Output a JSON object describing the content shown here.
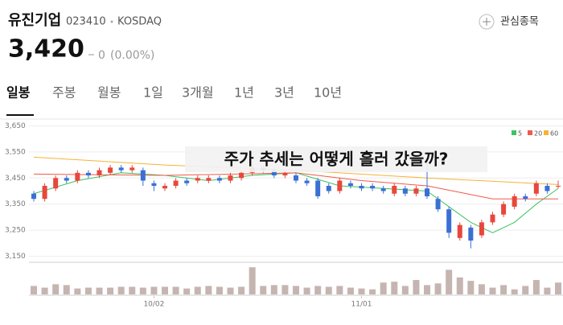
{
  "header": {
    "name": "유진기업",
    "code": "023410",
    "market": "KOSDAQ",
    "watch": "관심종목",
    "price": "3,420",
    "change": "0",
    "change_pct": "(0.00%)"
  },
  "tabs": [
    "일봉",
    "주봉",
    "월봉",
    "1일",
    "3개월",
    "1년",
    "3년",
    "10년"
  ],
  "chart_data": {
    "type": "candlestick",
    "title": "주가 추세는 어떻게 흘러 갔을까?",
    "categories": [
      null,
      null,
      null,
      null,
      null,
      null,
      null,
      null,
      null,
      null,
      null,
      "10/02",
      null,
      null,
      null,
      null,
      null,
      null,
      null,
      null,
      null,
      null,
      null,
      null,
      null,
      null,
      null,
      null,
      null,
      null,
      "11/01",
      null,
      null,
      null,
      null,
      null,
      null,
      null,
      null,
      null,
      null,
      null,
      null,
      null,
      null,
      null,
      null,
      null,
      null
    ],
    "open": [
      3390,
      3370,
      3410,
      3450,
      3440,
      3470,
      3460,
      3470,
      3490,
      3480,
      3480,
      3430,
      3410,
      3420,
      3440,
      3440,
      3440,
      3450,
      3440,
      3450,
      3470,
      3490,
      3480,
      3460,
      3460,
      3440,
      3440,
      3420,
      3400,
      3430,
      3420,
      3420,
      3410,
      3390,
      3410,
      3390,
      3410,
      3370,
      3330,
      3220,
      3260,
      3230,
      3280,
      3310,
      3340,
      3380,
      3390,
      3420,
      3420
    ],
    "high": [
      3400,
      3430,
      3460,
      3460,
      3480,
      3480,
      3490,
      3500,
      3500,
      3500,
      3490,
      3440,
      3430,
      3450,
      3450,
      3460,
      3460,
      3460,
      3470,
      3480,
      3500,
      3500,
      3490,
      3480,
      3470,
      3450,
      3450,
      3430,
      3450,
      3440,
      3430,
      3430,
      3420,
      3430,
      3420,
      3420,
      3530,
      3380,
      3340,
      3280,
      3270,
      3290,
      3320,
      3360,
      3390,
      3390,
      3440,
      3430,
      3440
    ],
    "low": [
      3360,
      3360,
      3400,
      3430,
      3430,
      3450,
      3450,
      3460,
      3470,
      3470,
      3420,
      3400,
      3400,
      3410,
      3420,
      3430,
      3430,
      3430,
      3430,
      3440,
      3460,
      3470,
      3450,
      3450,
      3430,
      3420,
      3370,
      3390,
      3390,
      3410,
      3400,
      3400,
      3390,
      3380,
      3380,
      3380,
      3370,
      3320,
      3220,
      3210,
      3180,
      3220,
      3270,
      3300,
      3330,
      3360,
      3380,
      3390,
      3410
    ],
    "close": [
      3370,
      3420,
      3450,
      3440,
      3470,
      3460,
      3480,
      3490,
      3480,
      3490,
      3440,
      3420,
      3420,
      3440,
      3430,
      3450,
      3450,
      3440,
      3460,
      3470,
      3490,
      3480,
      3460,
      3470,
      3440,
      3430,
      3380,
      3400,
      3440,
      3420,
      3410,
      3410,
      3400,
      3420,
      3390,
      3410,
      3380,
      3330,
      3240,
      3270,
      3210,
      3280,
      3310,
      3350,
      3380,
      3370,
      3430,
      3400,
      3420
    ],
    "volume": [
      10,
      8,
      12,
      11,
      7,
      8,
      8,
      8,
      9,
      9,
      8,
      9,
      9,
      9,
      7,
      9,
      10,
      9,
      8,
      9,
      32,
      10,
      11,
      11,
      10,
      8,
      10,
      9,
      10,
      8,
      7,
      6,
      14,
      15,
      10,
      17,
      11,
      13,
      29,
      20,
      16,
      12,
      8,
      11,
      6,
      10,
      17,
      8,
      14
    ],
    "volume_lim": [
      0,
      36
    ],
    "up_color": "#e8473c",
    "down_color": "#3b6fd4",
    "volume_color": "#c5b5b0",
    "ylim": [
      3130,
      3670
    ],
    "yticks": [
      {
        "value": 3150,
        "label": "3,150"
      },
      {
        "value": 3250,
        "label": "3,250"
      },
      {
        "value": 3350,
        "label": "3,350"
      },
      {
        "value": 3450,
        "label": "3,450"
      },
      {
        "value": 3550,
        "label": "3,550"
      },
      {
        "value": 3650,
        "label": "3,650"
      }
    ],
    "grid": true,
    "moving_averages": [
      {
        "name": "5",
        "color": "#3cc461",
        "x": [
          0,
          4,
          8,
          12,
          16,
          20,
          24,
          28,
          32,
          36,
          38,
          40,
          42,
          44,
          46,
          48
        ],
        "values": [
          3390,
          3440,
          3470,
          3460,
          3440,
          3460,
          3470,
          3420,
          3410,
          3400,
          3340,
          3280,
          3240,
          3280,
          3350,
          3410
        ]
      },
      {
        "name": "20",
        "color": "#f05a4a",
        "x": [
          0,
          12,
          24,
          30,
          36,
          42,
          48
        ],
        "values": [
          3465,
          3460,
          3470,
          3440,
          3420,
          3370,
          3370
        ]
      },
      {
        "name": "60",
        "color": "#f5b335",
        "x": [
          0,
          12,
          24,
          36,
          48
        ],
        "values": [
          3530,
          3500,
          3480,
          3450,
          3425
        ]
      }
    ]
  }
}
